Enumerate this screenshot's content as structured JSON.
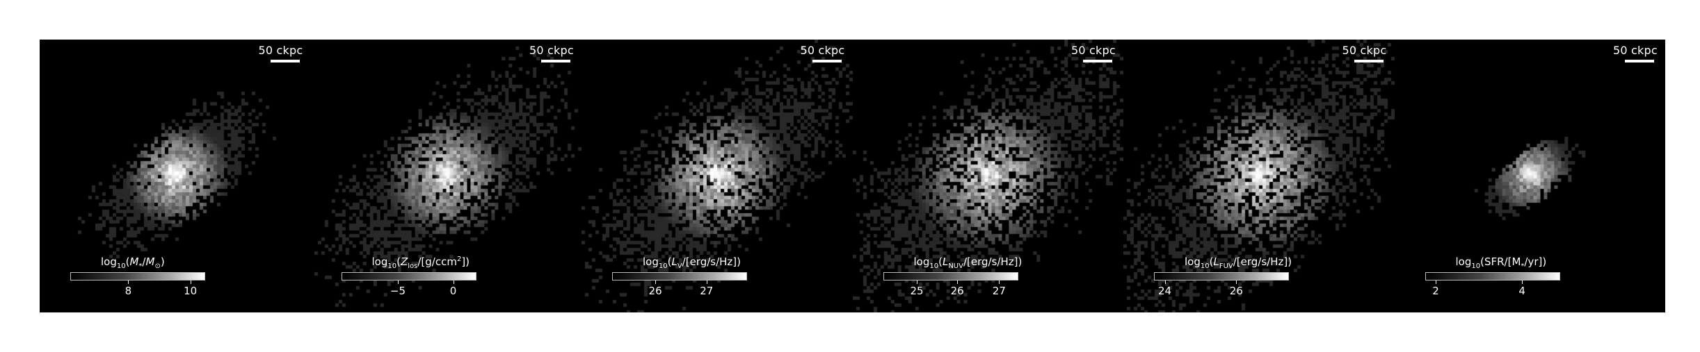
{
  "scale_bar_label": "50 ckpc",
  "panels": [
    {
      "id": "stellar-mass",
      "cb_title_html": "log<sub>10</sub>(<i>M</i><sub>*</sub>/<i>M</i><sub>⊙</sub>)",
      "ticks": [
        "8",
        "10"
      ],
      "ticks_pos": [
        0.43,
        0.89
      ],
      "spread": 0.3,
      "peak": 1.0
    },
    {
      "id": "metallicity",
      "cb_title_html": "log<sub>10</sub>(<i>Z</i><sub>los</sub>/[g/ccm<sup>2</sup>])",
      "ticks": [
        "−5",
        "0"
      ],
      "ticks_pos": [
        0.42,
        0.83
      ],
      "spread": 0.45,
      "peak": 0.9
    },
    {
      "id": "v-band",
      "cb_title_html": "log<sub>10</sub>(<i>L</i><sub>V</sub>/[erg/s/Hz])",
      "ticks": [
        "26",
        "27"
      ],
      "ticks_pos": [
        0.32,
        0.7
      ],
      "spread": 0.5,
      "peak": 0.95
    },
    {
      "id": "nuv-band",
      "cb_title_html": "log<sub>10</sub>(<i>L</i><sub>NUV</sub>/[erg/s/Hz])",
      "ticks": [
        "25",
        "26",
        "27"
      ],
      "ticks_pos": [
        0.25,
        0.55,
        0.86
      ],
      "spread": 0.6,
      "peak": 0.9
    },
    {
      "id": "fuv-band",
      "cb_title_html": "log<sub>10</sub>(<i>L</i><sub>FUV</sub>/[erg/s/Hz])",
      "ticks": [
        "24",
        "26"
      ],
      "ticks_pos": [
        0.08,
        0.61
      ],
      "spread": 0.62,
      "peak": 0.9
    },
    {
      "id": "sfr",
      "cb_title_html": "log<sub>10</sub>(SFR/[M<sub>*</sub>/yr])",
      "ticks": [
        "2",
        "4"
      ],
      "ticks_pos": [
        0.08,
        0.72
      ],
      "spread": 0.15,
      "peak": 0.85
    }
  ]
}
